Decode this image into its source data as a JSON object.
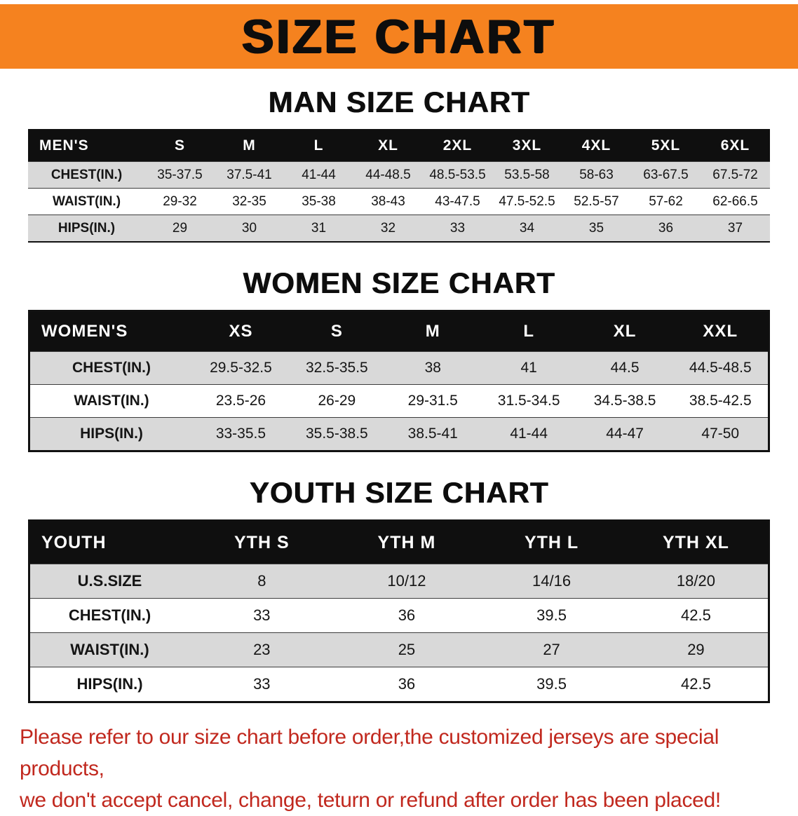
{
  "banner": {
    "title": "SIZE CHART"
  },
  "colors": {
    "banner_orange": "#f5821f",
    "table_header_black": "#0f0f0f",
    "row_stripe_gray": "#d9d9d9",
    "note_red": "#c1281e"
  },
  "men": {
    "heading": "MAN SIZE CHART",
    "header": [
      "MEN'S",
      "S",
      "M",
      "L",
      "XL",
      "2XL",
      "3XL",
      "4XL",
      "5XL",
      "6XL"
    ],
    "rows": [
      {
        "label": "CHEST(IN.)",
        "values": [
          "35-37.5",
          "37.5-41",
          "41-44",
          "44-48.5",
          "48.5-53.5",
          "53.5-58",
          "58-63",
          "63-67.5",
          "67.5-72"
        ]
      },
      {
        "label": "WAIST(IN.)",
        "values": [
          "29-32",
          "32-35",
          "35-38",
          "38-43",
          "43-47.5",
          "47.5-52.5",
          "52.5-57",
          "57-62",
          "62-66.5"
        ]
      },
      {
        "label": "HIPS(IN.)",
        "values": [
          "29",
          "30",
          "31",
          "32",
          "33",
          "34",
          "35",
          "36",
          "37"
        ]
      }
    ]
  },
  "women": {
    "heading": "WOMEN SIZE CHART",
    "header": [
      "WOMEN'S",
      "XS",
      "S",
      "M",
      "L",
      "XL",
      "XXL"
    ],
    "rows": [
      {
        "label": "CHEST(IN.)",
        "values": [
          "29.5-32.5",
          "32.5-35.5",
          "38",
          "41",
          "44.5",
          "44.5-48.5"
        ]
      },
      {
        "label": "WAIST(IN.)",
        "values": [
          "23.5-26",
          "26-29",
          "29-31.5",
          "31.5-34.5",
          "34.5-38.5",
          "38.5-42.5"
        ]
      },
      {
        "label": "HIPS(IN.)",
        "values": [
          "33-35.5",
          "35.5-38.5",
          "38.5-41",
          "41-44",
          "44-47",
          "47-50"
        ]
      }
    ]
  },
  "youth": {
    "heading": "YOUTH SIZE CHART",
    "header": [
      "YOUTH",
      "YTH S",
      "YTH M",
      "YTH L",
      "YTH XL"
    ],
    "rows": [
      {
        "label": "U.S.SIZE",
        "values": [
          "8",
          "10/12",
          "14/16",
          "18/20"
        ]
      },
      {
        "label": "CHEST(IN.)",
        "values": [
          "33",
          "36",
          "39.5",
          "42.5"
        ]
      },
      {
        "label": "WAIST(IN.)",
        "values": [
          "23",
          "25",
          "27",
          "29"
        ]
      },
      {
        "label": "HIPS(IN.)",
        "values": [
          "33",
          "36",
          "39.5",
          "42.5"
        ]
      }
    ]
  },
  "note": {
    "line1": "Please refer to our size chart before order,the customized jerseys are special products,",
    "line2": "we don't accept cancel, change, teturn or refund after order has been placed!"
  }
}
